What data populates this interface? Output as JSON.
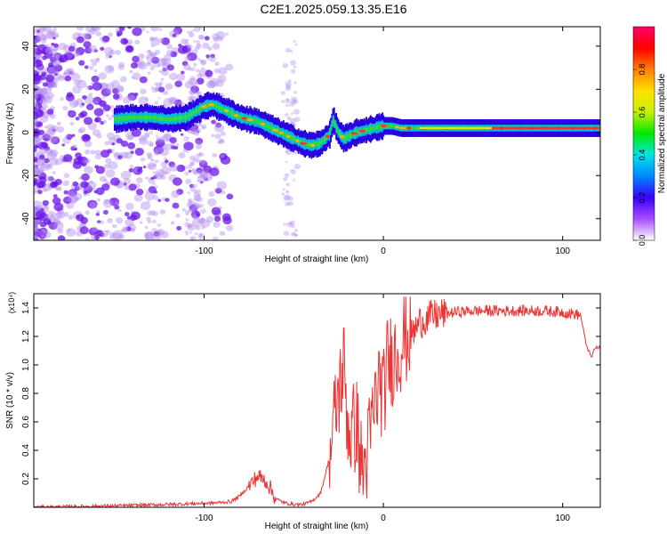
{
  "title": "C2E1.2025.059.13.35.E16",
  "chart_data": [
    {
      "type": "heatmap",
      "xlabel": "Height of straight line (km)",
      "ylabel": "Frequency (Hz)",
      "xlim": [
        -195,
        121
      ],
      "ylim": [
        -50,
        49
      ],
      "xticks": [
        -100,
        0,
        100
      ],
      "yticks": [
        -40,
        -20,
        0,
        20,
        40
      ],
      "colorbar": {
        "label": "Normalized spectral amplitude",
        "range": [
          0,
          1
        ],
        "ticks": [
          "0.0",
          "0.2",
          "0.4",
          "0.6",
          "0.8"
        ],
        "colors": [
          "#ffffff",
          "#a64dff",
          "#3a00ff",
          "#0088ff",
          "#00e5e5",
          "#00e800",
          "#c8f000",
          "#ffe000",
          "#ff8000",
          "#ff0000",
          "#ff0066"
        ]
      },
      "ridge": {
        "x": [
          -150,
          -140,
          -130,
          -120,
          -110,
          -100,
          -95,
          -90,
          -85,
          -80,
          -75,
          -70,
          -65,
          -60,
          -55,
          -50,
          -45,
          -40,
          -35,
          -30,
          -28,
          -25,
          -22,
          -20,
          -15,
          -10,
          -5,
          0,
          5,
          10,
          20,
          40,
          60,
          80,
          100,
          121
        ],
        "y": [
          6,
          7,
          7,
          6,
          7,
          12,
          13,
          11,
          9,
          7,
          6,
          5,
          3,
          1,
          -1,
          -3,
          -5,
          -6,
          -5,
          -1,
          6,
          0,
          -3,
          -2,
          0,
          1,
          2,
          3,
          3,
          2,
          2,
          2,
          2,
          2,
          2,
          2
        ]
      }
    },
    {
      "type": "line",
      "xlabel": "Height of straight line (km)",
      "ylabel": "SNR (10 * v/v)",
      "multiplier": "(x10⁴)",
      "color": "#ee3333",
      "xlim": [
        -195,
        121
      ],
      "ylim": [
        0,
        1.5
      ],
      "xticks": [
        -100,
        0,
        100
      ],
      "yticks": [
        0.2,
        0.4,
        0.6,
        0.8,
        1.0,
        1.2,
        1.4
      ],
      "ytick_labels": [
        "0.2",
        "0.4",
        "0.6",
        "0.8",
        "1.0",
        "1.2",
        "1.4"
      ],
      "x": [
        -195,
        -150,
        -120,
        -95,
        -85,
        -80,
        -75,
        -70,
        -65,
        -60,
        -55,
        -50,
        -45,
        -40,
        -35,
        -30,
        -28,
        -25,
        -22,
        -20,
        -18,
        -15,
        -12,
        -10,
        -8,
        -5,
        -2,
        0,
        2,
        5,
        8,
        10,
        12,
        15,
        18,
        20,
        25,
        30,
        40,
        50,
        60,
        70,
        80,
        90,
        100,
        110,
        113,
        116,
        118,
        121
      ],
      "y": [
        0.0,
        0.01,
        0.02,
        0.03,
        0.04,
        0.08,
        0.15,
        0.22,
        0.18,
        0.06,
        0.03,
        0.02,
        0.02,
        0.04,
        0.1,
        0.35,
        0.55,
        0.8,
        1.0,
        0.6,
        0.5,
        0.6,
        0.25,
        0.3,
        0.45,
        0.7,
        0.9,
        0.75,
        1.0,
        1.05,
        1.1,
        1.15,
        1.2,
        1.2,
        1.25,
        1.3,
        1.33,
        1.35,
        1.37,
        1.38,
        1.38,
        1.38,
        1.38,
        1.38,
        1.37,
        1.35,
        1.15,
        1.05,
        1.12,
        1.12
      ]
    }
  ]
}
